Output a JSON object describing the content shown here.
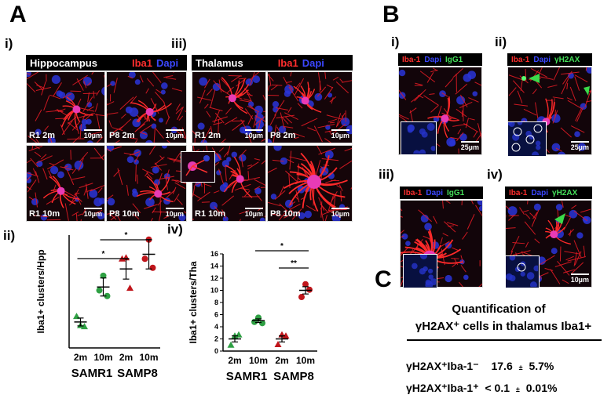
{
  "panel_a": {
    "letter": "A",
    "i": {
      "label": "i)",
      "region": "Hippocampus",
      "stain": "Iba1",
      "counter": "Dapi"
    },
    "iii": {
      "label": "iii)",
      "region": "Thalamus",
      "stain": "Iba1",
      "counter": "Dapi"
    },
    "images": {
      "hpp_r1_2m": "R1 2m",
      "hpp_p8_2m": "P8 2m",
      "hpp_r1_10m": "R1 10m",
      "hpp_p8_10m": "P8 10m",
      "tha_r1_2m": "R1 2m",
      "tha_p8_2m": "P8 2m",
      "tha_r1_10m": "R1 10m",
      "tha_p8_10m": "P8 10m"
    },
    "scale": "10µm",
    "ii": {
      "label": "ii)"
    },
    "iv": {
      "label": "iv)"
    }
  },
  "panel_b": {
    "letter": "B",
    "i": {
      "label": "i)",
      "stain": "Iba-1",
      "counter": "Dapi",
      "marker": "IgG1",
      "scale": "25µm"
    },
    "ii": {
      "label": "ii)",
      "stain": "Iba-1",
      "counter": "Dapi",
      "marker": "γH2AX",
      "scale": "25µm"
    },
    "iii": {
      "label": "iii)",
      "stain": "Iba-1",
      "counter": "Dapi",
      "marker": "IgG1"
    },
    "iv": {
      "label": "iv)",
      "stain": "Iba-1",
      "counter": "Dapi",
      "marker": "γH2AX",
      "scale": "10µm"
    }
  },
  "panel_c": {
    "letter": "C",
    "title_line1": "Quantification of",
    "title_line2": "γH2AX⁺ cells in thalamus Iba1+",
    "row1_label": "γH2AX⁺Iba-1⁻",
    "row1_value": "17.6",
    "row1_pm": "±",
    "row1_err": "5.7%",
    "row2_label": "γH2AX⁺Iba-1⁺",
    "row2_value": "< 0.1",
    "row2_pm": "±",
    "row2_err": "0.01%"
  },
  "colors": {
    "samr1": "#2ea043",
    "samp8": "#c0151b",
    "iba1": "#ff2020",
    "dapi": "#2b3cff"
  },
  "chart_data": [
    {
      "type": "scatter",
      "ylabel": "Iba1+ clusters/Hpp",
      "ylim": [
        0,
        10
      ],
      "yticks": [],
      "categories": [
        "2m",
        "10m",
        "2m",
        "10m"
      ],
      "groups": [
        "SAMR1",
        "SAMP8"
      ],
      "series": [
        {
          "group": "SAMR1",
          "age": "2m",
          "marker": "triangle",
          "color": "#2ea043",
          "points": [
            2.0,
            2.8,
            1.9
          ],
          "mean": 2.3,
          "sem": 0.35
        },
        {
          "group": "SAMR1",
          "age": "10m",
          "marker": "circle",
          "color": "#2ea043",
          "points": [
            6.4,
            5.1,
            4.6
          ],
          "mean": 5.4,
          "sem": 0.8
        },
        {
          "group": "SAMP8",
          "age": "2m",
          "marker": "triangle",
          "color": "#c0151b",
          "points": [
            8.0,
            7.9,
            5.3
          ],
          "mean": 7.0,
          "sem": 0.9
        },
        {
          "group": "SAMP8",
          "age": "10m",
          "marker": "circle",
          "color": "#c0151b",
          "points": [
            9.6,
            7.9,
            7.1
          ],
          "mean": 8.3,
          "sem": 1.3
        }
      ],
      "significance": [
        {
          "from": 0,
          "to": 2,
          "label": "*"
        },
        {
          "from": 1,
          "to": 3,
          "label": "*"
        }
      ]
    },
    {
      "type": "scatter",
      "ylabel": "Iba1+ clusters/Tha",
      "ylim": [
        0,
        16
      ],
      "yticks": [
        0,
        2,
        4,
        6,
        8,
        10,
        12,
        14,
        16
      ],
      "categories": [
        "2m",
        "10m",
        "2m",
        "10m"
      ],
      "groups": [
        "SAMR1",
        "SAMP8"
      ],
      "series": [
        {
          "group": "SAMR1",
          "age": "2m",
          "marker": "triangle",
          "color": "#2ea043",
          "points": [
            2.5,
            1.0,
            2.7
          ],
          "mean": 2.0,
          "sem": 0.5
        },
        {
          "group": "SAMR1",
          "age": "10m",
          "marker": "circle",
          "color": "#2ea043",
          "points": [
            5.5,
            4.8,
            4.6
          ],
          "mean": 5.0,
          "sem": 0.3
        },
        {
          "group": "SAMP8",
          "age": "2m",
          "marker": "triangle",
          "color": "#c0151b",
          "points": [
            2.7,
            1.1,
            2.5
          ],
          "mean": 2.0,
          "sem": 0.5
        },
        {
          "group": "SAMP8",
          "age": "10m",
          "marker": "circle",
          "color": "#c0151b",
          "points": [
            11.0,
            8.9,
            10.1
          ],
          "mean": 10.0,
          "sem": 0.6
        }
      ],
      "significance": [
        {
          "from": 2,
          "to": 3,
          "label": "**"
        },
        {
          "from": 1,
          "to": 3,
          "label": "*"
        }
      ]
    }
  ]
}
